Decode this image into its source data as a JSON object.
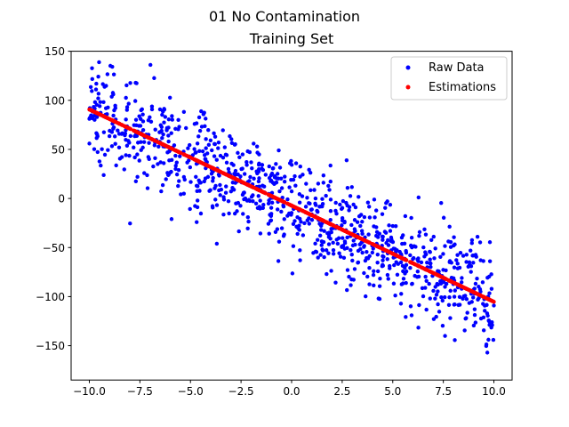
{
  "figure": {
    "suptitle": "01 No Contamination"
  },
  "chart_data": {
    "type": "scatter",
    "title": "Training Set",
    "xlabel": "",
    "ylabel": "",
    "xlim": [
      -10.9,
      10.9
    ],
    "ylim": [
      -185,
      150
    ],
    "xticks": [
      -10.0,
      -7.5,
      -5.0,
      -2.5,
      0.0,
      2.5,
      5.0,
      7.5,
      10.0
    ],
    "xtick_labels": [
      "−10.0",
      "−7.5",
      "−5.0",
      "−2.5",
      "0.0",
      "2.5",
      "5.0",
      "7.5",
      "10.0"
    ],
    "yticks": [
      150,
      100,
      50,
      0,
      -50,
      -100,
      -150
    ],
    "ytick_labels": [
      "150",
      "100",
      "50",
      "0",
      "−50",
      "−100",
      "−150"
    ],
    "grid": false,
    "legend": {
      "position": "top-right"
    },
    "series": [
      {
        "name": "Raw Data",
        "color": "#0000ff",
        "x_range": [
          -10,
          10
        ],
        "n_points": 1000,
        "model": {
          "slope": -9.8,
          "intercept": -7.3
        },
        "noise_sd": 25
      },
      {
        "name": "Estimations",
        "color": "#ff0000",
        "x_range": [
          -10,
          10
        ],
        "n_points": 1000,
        "model": {
          "slope": -9.8,
          "intercept": -7.3
        }
      }
    ]
  }
}
